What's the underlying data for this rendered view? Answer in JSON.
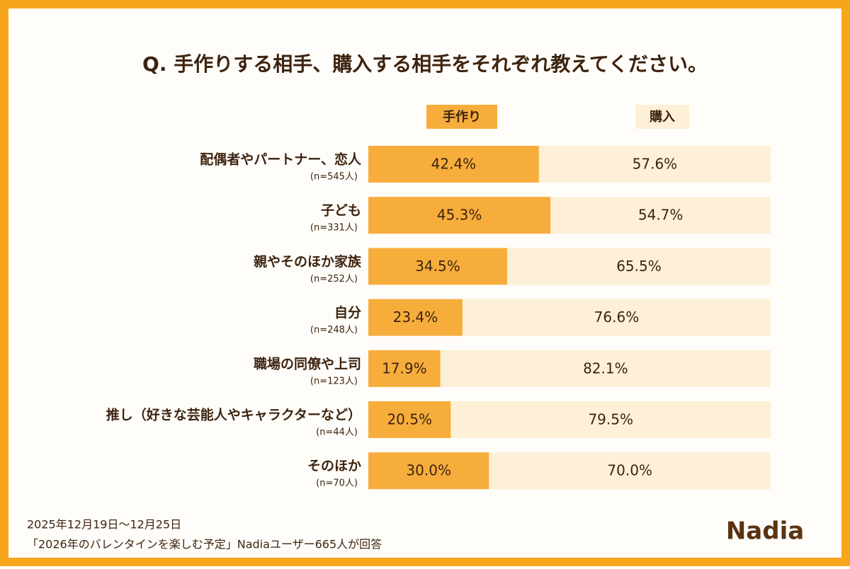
{
  "chart_data": {
    "type": "stacked-bar",
    "title": "Q. 手作りする相手、購入する相手をそれぞれ教えてください。",
    "categories": [
      "配偶者やパートナー、恋人",
      "子ども",
      "親やそのほか家族",
      "自分",
      "職場の同僚や上司",
      "推し（好きな芸能人やキャラクターなど）",
      "そのほか"
    ],
    "category_notes": [
      "(n=545人)",
      "(n=331人)",
      "(n=252人)",
      "(n=248人)",
      "(n=123人)",
      "(n=44人)",
      "(n=70人)"
    ],
    "series": [
      {
        "name": "手作り",
        "color": "#f7ad3c",
        "values": [
          42.4,
          45.3,
          34.5,
          23.4,
          17.9,
          20.5,
          30.0
        ],
        "value_labels": [
          "42.4%",
          "45.3%",
          "34.5%",
          "23.4%",
          "17.9%",
          "20.5%",
          "30.0%"
        ]
      },
      {
        "name": "購入",
        "color": "#fdf0d6",
        "values": [
          57.6,
          54.7,
          65.5,
          76.6,
          82.1,
          79.5,
          70.0
        ],
        "value_labels": [
          "57.6%",
          "54.7%",
          "65.5%",
          "76.6%",
          "82.1%",
          "79.5%",
          "70.0%"
        ]
      }
    ],
    "footnotes": [
      "2025年12月19日～12月25日",
      "「2026年のバレンタインを楽しむ予定」Nadiaユーザー665人が回答"
    ],
    "logo": "Nadia"
  }
}
